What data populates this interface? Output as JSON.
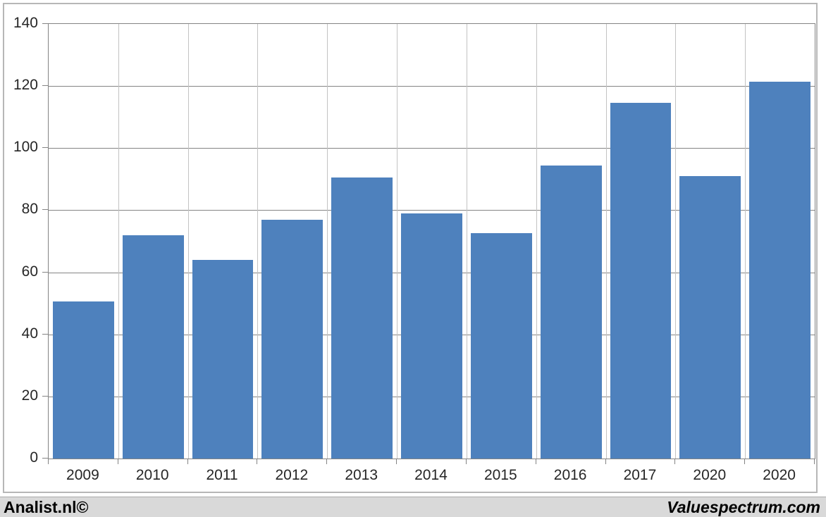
{
  "chart_data": {
    "type": "bar",
    "title": "",
    "xlabel": "",
    "ylabel": "",
    "categories": [
      "2009",
      "2010",
      "2011",
      "2012",
      "2013",
      "2014",
      "2015",
      "2016",
      "2017",
      "2020",
      "2020"
    ],
    "values": [
      50.5,
      72,
      64,
      77,
      90.5,
      79,
      72.5,
      94.5,
      114.5,
      91,
      121.5
    ],
    "ylim": [
      0,
      140
    ],
    "yticks": [
      0,
      20,
      40,
      60,
      80,
      100,
      120,
      140
    ],
    "grid": "horizontal major lines + vertical category separators",
    "legend_position": "none"
  },
  "colors": {
    "bar": "#4E81BD",
    "grid_major": "#848484",
    "grid_category": "#C3C3C3",
    "plot_border": "#848484",
    "axis_text": "#262626",
    "footer_bg": "#D9D9D9",
    "frame_border": "#B7B7B7"
  },
  "footer": {
    "left_label": "Analist.nl©",
    "right_label": "Valuespectrum.com"
  }
}
